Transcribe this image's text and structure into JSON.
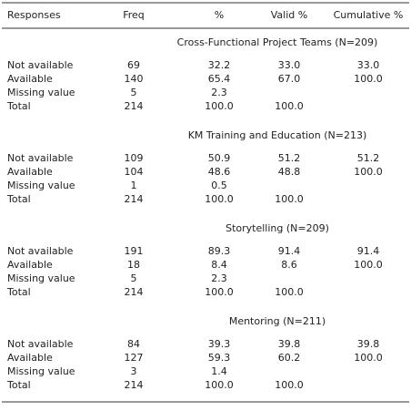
{
  "table": {
    "header": [
      "Responses",
      "Freq",
      "%",
      "Valid %",
      "Cumulative %"
    ],
    "sections": [
      {
        "title": "Cross-Functional Project Teams (N=209)",
        "rows": [
          [
            "Not available",
            "69",
            "32.2",
            "33.0",
            "33.0"
          ],
          [
            "Available",
            "140",
            "65.4",
            "67.0",
            "100.0"
          ],
          [
            "Missing value",
            "5",
            "2.3",
            null,
            null
          ],
          [
            "Total",
            "214",
            "100.0",
            "100.0",
            null
          ]
        ]
      },
      {
        "title": "KM Training and Education (N=213)",
        "rows": [
          [
            "Not available",
            "109",
            "50.9",
            "51.2",
            "51.2"
          ],
          [
            "Available",
            "104",
            "48.6",
            "48.8",
            "100.0"
          ],
          [
            "Missing value",
            "1",
            "0.5",
            null,
            null
          ],
          [
            "Total",
            "214",
            "100.0",
            "100.0",
            null
          ]
        ]
      },
      {
        "title": "Storytelling (N=209)",
        "rows": [
          [
            "Not available",
            "191",
            "89.3",
            "91.4",
            "91.4"
          ],
          [
            "Available",
            "18",
            "8.4",
            "8.6",
            "100.0"
          ],
          [
            "Missing value",
            "5",
            "2.3",
            null,
            null
          ],
          [
            "Total",
            "214",
            "100.0",
            "100.0",
            null
          ]
        ]
      },
      {
        "title": "Mentoring (N=211)",
        "rows": [
          [
            "Not available",
            "84",
            "39.3",
            "39.8",
            "39.8"
          ],
          [
            "Available",
            "127",
            "59.3",
            "60.2",
            "100.0"
          ],
          [
            "Missing value",
            "3",
            "1.4",
            null,
            null
          ],
          [
            "Total",
            "214",
            "100.0",
            "100.0",
            null
          ]
        ]
      }
    ]
  }
}
